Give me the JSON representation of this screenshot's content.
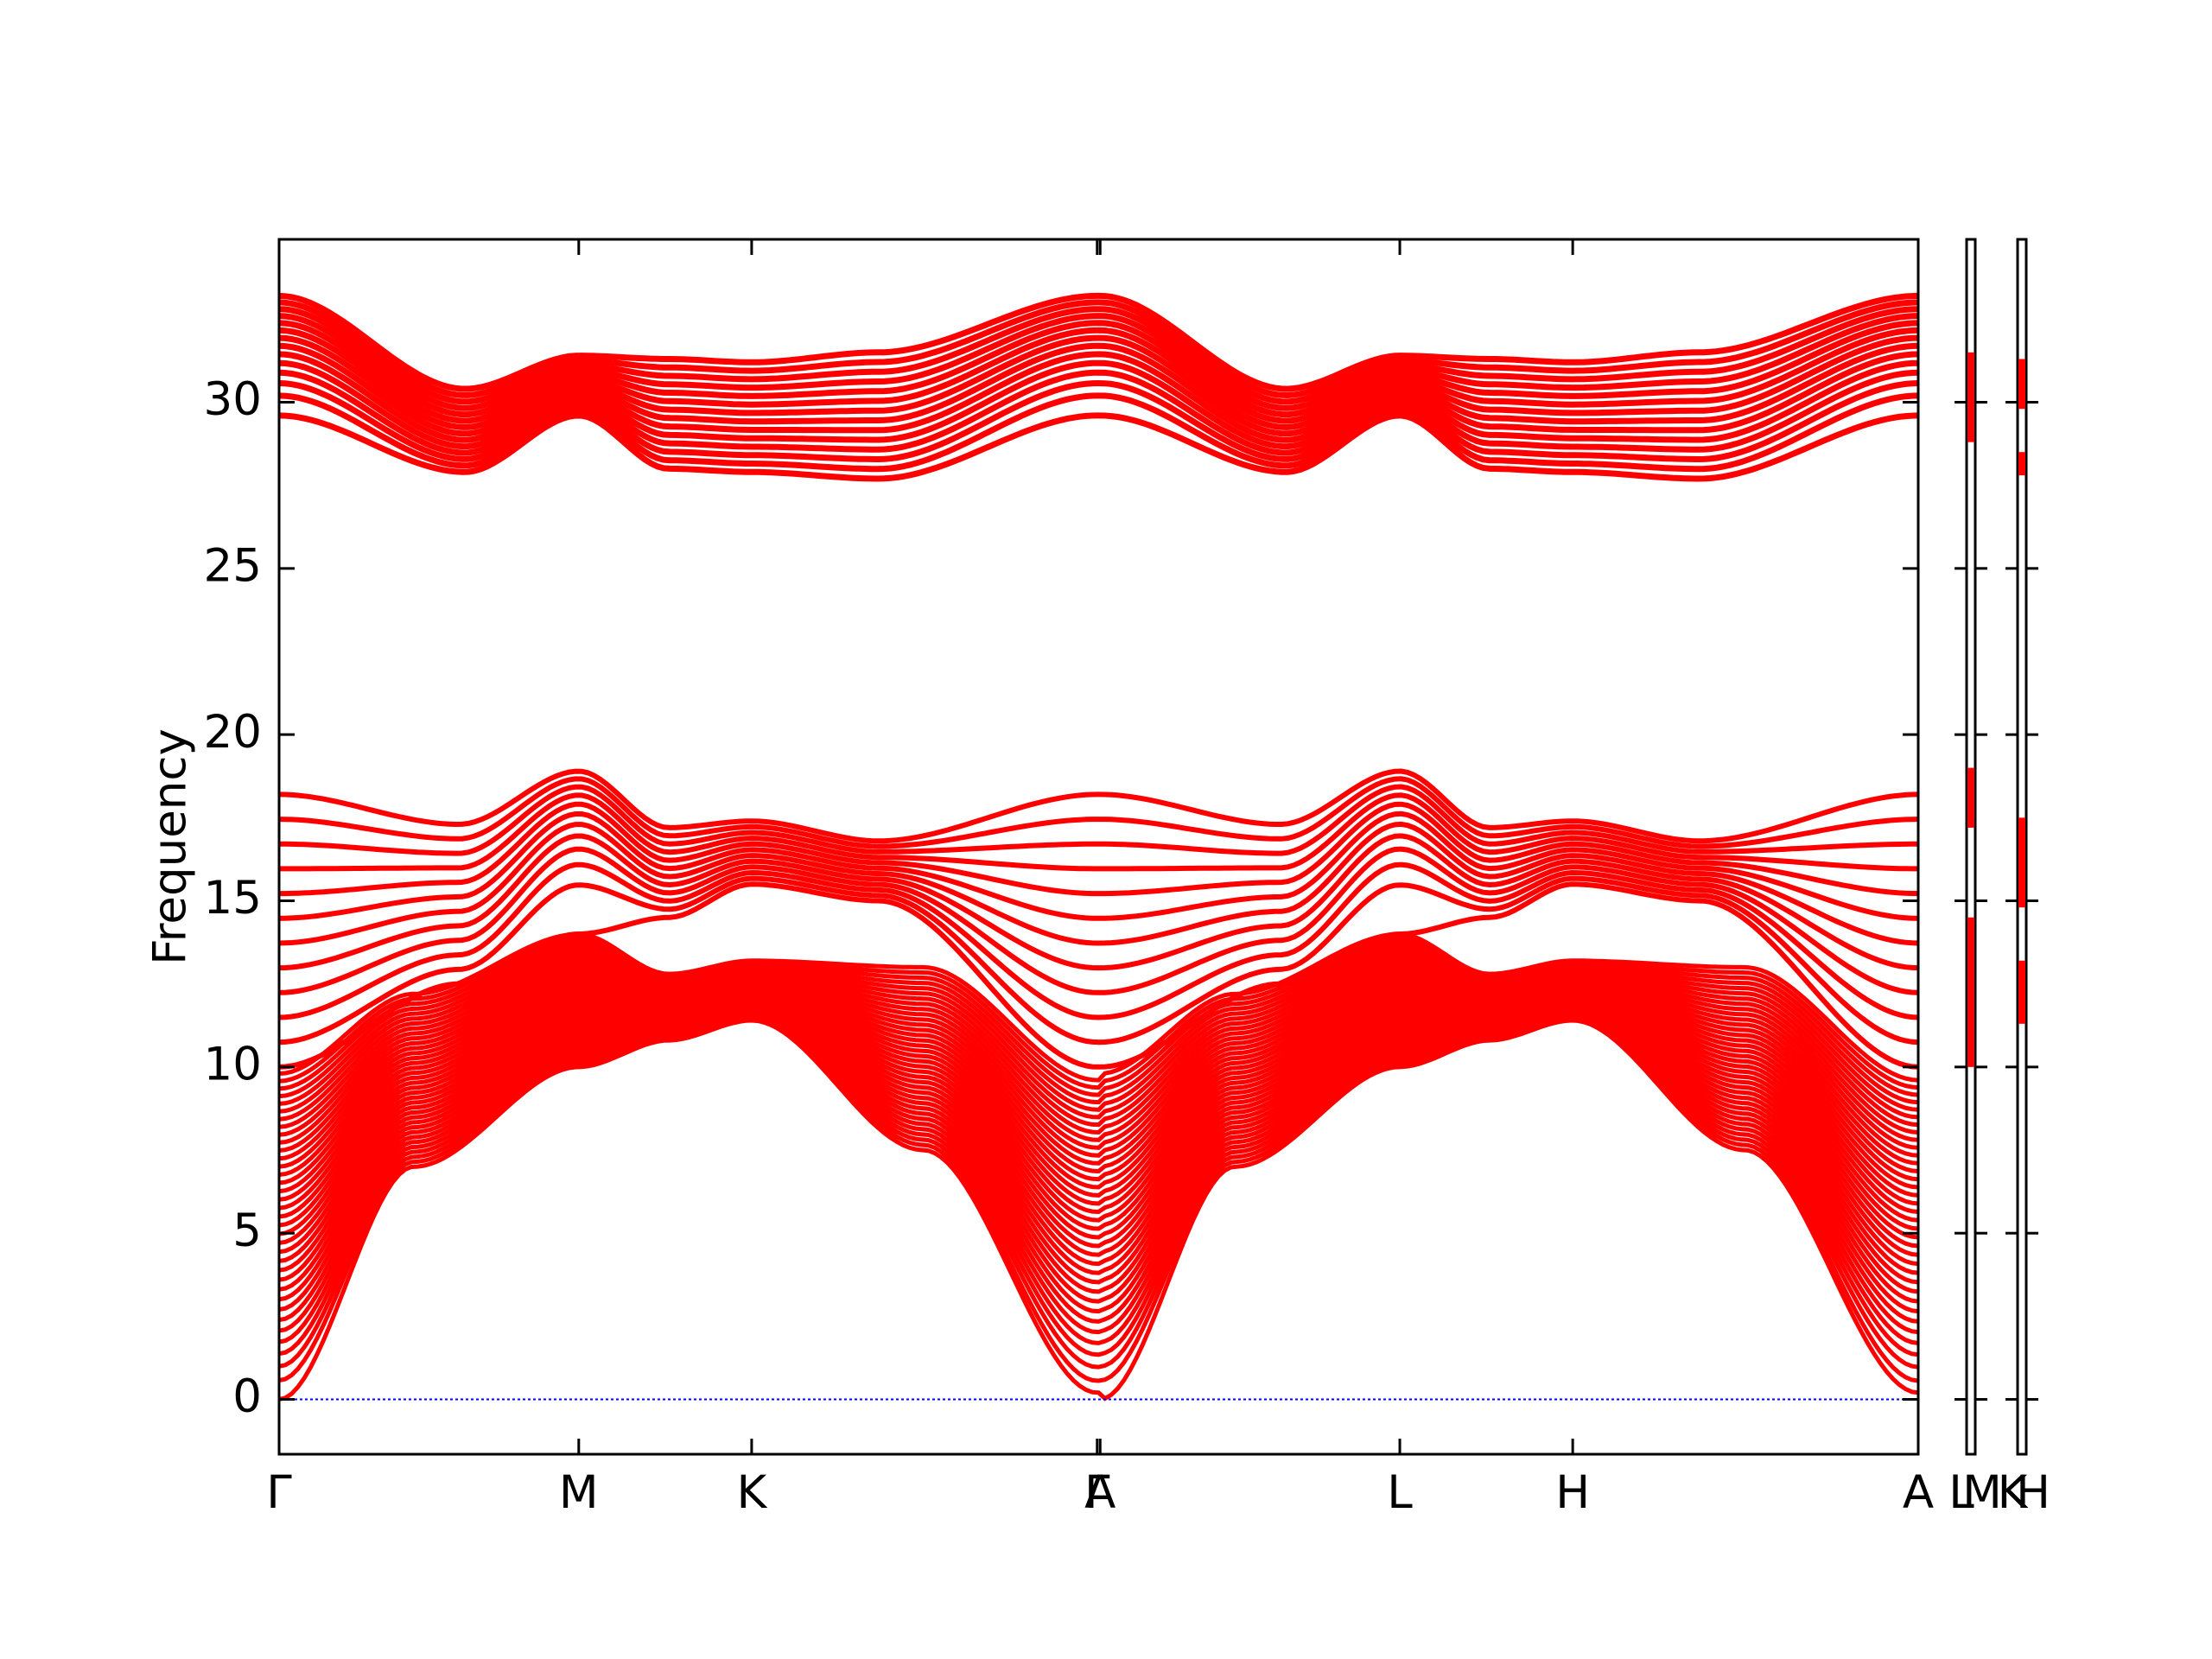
{
  "chart_data": {
    "type": "line",
    "title": "",
    "ylabel": "Frequency",
    "xlabel": "",
    "ylim": [
      -1.65,
      34.9
    ],
    "y_ticks": [
      0,
      5,
      10,
      15,
      20,
      25,
      30
    ],
    "grid": false,
    "legend": "none",
    "colors": {
      "bands": "#ff0000",
      "zero_line": "#0000ff",
      "axes": "#000000"
    },
    "x_ticks": [
      {
        "label": "Γ",
        "pos": 0.0
      },
      {
        "label": "M",
        "pos": 1.0
      },
      {
        "label": "K",
        "pos": 1.577
      },
      {
        "label": "Γ",
        "pos": 2.73
      },
      {
        "label": "A",
        "pos": 2.74
      },
      {
        "label": "L",
        "pos": 3.74
      },
      {
        "label": "H",
        "pos": 4.317
      },
      {
        "label": "A",
        "pos": 5.47
      }
    ],
    "side_panels": [
      {
        "labels": [
          "L",
          "M"
        ],
        "segments": [
          [
            28.8,
            31.5
          ],
          [
            17.2,
            19.0
          ],
          [
            10.0,
            14.5
          ]
        ]
      },
      {
        "labels": [
          "K",
          "H"
        ],
        "segments": [
          [
            29.8,
            31.3
          ],
          [
            27.8,
            28.5
          ],
          [
            14.8,
            17.5
          ],
          [
            11.3,
            13.2
          ]
        ]
      }
    ],
    "band_groups": {
      "high_branch": {
        "count": 14,
        "gamma": [
          29.6,
          33.2
        ],
        "m": [
          29.6,
          31.4
        ],
        "k": [
          27.9,
          31.2
        ]
      },
      "optical_branch": {
        "count": 12,
        "gamma": [
          10.0,
          18.2
        ],
        "m": [
          14.0,
          18.9
        ],
        "k": [
          15.5,
          17.4
        ]
      },
      "acoustic_branch": {
        "count": 36,
        "gamma": [
          0.0,
          9.8
        ],
        "m": [
          10.0,
          14.0
        ],
        "k": [
          11.4,
          13.2
        ]
      }
    }
  }
}
